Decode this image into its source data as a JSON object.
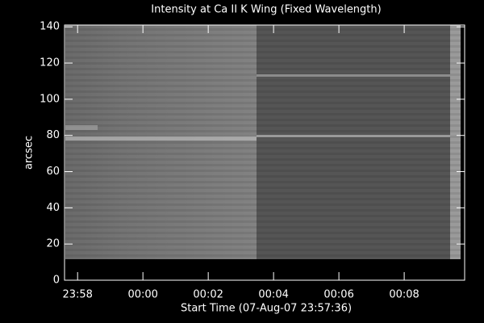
{
  "chart_data": {
    "type": "image",
    "title": "Intensity at Ca II K Wing (Fixed Wavelength)",
    "xlabel": "Start Time (07-Aug-07 23:57:36)",
    "ylabel": "arcsec",
    "xlim": [
      0,
      12.25
    ],
    "ylim": [
      0,
      141
    ],
    "xticks": [
      {
        "value": 0.4,
        "label": "23:58"
      },
      {
        "value": 2.4,
        "label": "00:00"
      },
      {
        "value": 4.4,
        "label": "00:02"
      },
      {
        "value": 6.4,
        "label": "00:04"
      },
      {
        "value": 8.4,
        "label": "00:06"
      },
      {
        "value": 10.4,
        "label": "00:08"
      }
    ],
    "yticks": [
      0,
      20,
      40,
      60,
      80,
      100,
      120,
      140
    ]
  }
}
